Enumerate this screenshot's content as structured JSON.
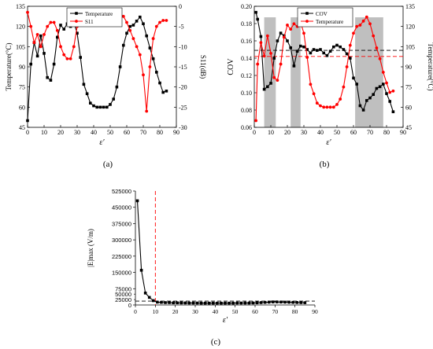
{
  "figure": {
    "panel_labels": [
      "(a)",
      "(b)",
      "(c)"
    ]
  },
  "chart_data": [
    {
      "panel": "(a)",
      "type": "line",
      "x_ticks": [
        "0",
        "10",
        "20",
        "30",
        "40",
        "50",
        "60",
        "70",
        "80",
        "90"
      ],
      "xlabel": "ε′",
      "xlim": [
        0,
        90
      ],
      "ylabel_left": "Temperature(°C)",
      "ylim_left": [
        45,
        135
      ],
      "y_ticks_left": [
        "45",
        "60",
        "75",
        "90",
        "105",
        "120",
        "135"
      ],
      "ylabel_right": "S11(dB)",
      "ylim_right": [
        -30,
        0
      ],
      "y_ticks_right": [
        "-30",
        "-25",
        "-20",
        "-15",
        "-10",
        "-5",
        "0"
      ],
      "legend": {
        "position": "top-left",
        "entries": [
          "Temperature",
          "S11"
        ]
      },
      "series": [
        {
          "name": "Temperature",
          "axis": "left",
          "color": "#000000",
          "marker": "square",
          "x": [
            0,
            2,
            4,
            6,
            8,
            10,
            12,
            14,
            16,
            18,
            20,
            22,
            24,
            26,
            28,
            30,
            32,
            34,
            36,
            38,
            40,
            42,
            44,
            46,
            48,
            50,
            52,
            54,
            56,
            58,
            60,
            62,
            64,
            66,
            68,
            70,
            72,
            74,
            76,
            78,
            80,
            82,
            84
          ],
          "y": [
            50,
            92,
            108,
            98,
            113,
            100,
            82,
            80,
            92,
            112,
            121,
            118,
            122,
            120,
            123,
            115,
            97,
            77,
            70,
            63,
            61,
            60,
            60,
            60,
            60,
            62,
            66,
            75,
            90,
            106,
            115,
            120,
            121,
            124,
            127,
            122,
            113,
            104,
            96,
            86,
            78,
            71,
            72
          ]
        },
        {
          "name": "S11",
          "axis": "right",
          "color": "#ff0000",
          "marker": "circle",
          "x": [
            0,
            2,
            4,
            6,
            8,
            10,
            12,
            14,
            16,
            18,
            20,
            22,
            24,
            26,
            28,
            30,
            32,
            34,
            36,
            38,
            40,
            42,
            44,
            46,
            48,
            50,
            52,
            54,
            56,
            58,
            60,
            62,
            64,
            66,
            68,
            70,
            72,
            74,
            76,
            78,
            80,
            82,
            84
          ],
          "y": [
            -1.5,
            -5,
            -9,
            -7,
            -10,
            -7,
            -5,
            -4,
            -4,
            -6,
            -10,
            -12,
            -13,
            -13,
            -10,
            -5,
            -3,
            -2,
            -2,
            -2,
            -2,
            -2,
            -2,
            -2,
            -2,
            -2,
            -2,
            -2,
            -2,
            -2.5,
            -4,
            -6,
            -8,
            -10,
            -12,
            -17,
            -26,
            -15,
            -8,
            -5,
            -4,
            -3.5,
            -3.5
          ]
        }
      ]
    },
    {
      "panel": "(b)",
      "type": "line",
      "x_ticks": [
        "0",
        "10",
        "20",
        "30",
        "40",
        "50",
        "60",
        "70",
        "80",
        "90"
      ],
      "xlabel": "ε′",
      "xlim": [
        0,
        90
      ],
      "ylabel_left": "COV",
      "ylim_left": [
        0.06,
        0.2
      ],
      "y_ticks_left": [
        "0.06",
        "0.08",
        "0.10",
        "0.12",
        "0.14",
        "0.16",
        "0.18",
        "0.20"
      ],
      "ylabel_right": "Temperature(°C)",
      "ylim_right": [
        45,
        135
      ],
      "y_ticks_right": [
        "45",
        "60",
        "75",
        "90",
        "105",
        "120",
        "135"
      ],
      "legend": {
        "position": "top-left",
        "entries": [
          "COV",
          "Temperature"
        ]
      },
      "shaded_x_ranges": [
        [
          6,
          13
        ],
        [
          22,
          28
        ],
        [
          61,
          78
        ]
      ],
      "reference_lines": [
        {
          "y": 0.149,
          "axis": "left",
          "color": "#000000",
          "style": "dashed"
        },
        {
          "y": 0.142,
          "axis": "left",
          "color": "#ff0000",
          "style": "dashed"
        }
      ],
      "series": [
        {
          "name": "COV",
          "axis": "left",
          "color": "#000000",
          "marker": "square",
          "x": [
            1,
            2,
            4,
            6,
            8,
            10,
            12,
            14,
            16,
            18,
            20,
            22,
            24,
            26,
            28,
            30,
            32,
            34,
            36,
            38,
            40,
            42,
            44,
            46,
            48,
            50,
            52,
            54,
            56,
            58,
            60,
            62,
            64,
            66,
            68,
            70,
            72,
            74,
            76,
            78,
            80,
            82,
            84
          ],
          "y": [
            0.193,
            0.185,
            0.165,
            0.104,
            0.107,
            0.111,
            0.14,
            0.16,
            0.169,
            0.166,
            0.16,
            0.152,
            0.131,
            0.148,
            0.154,
            0.153,
            0.15,
            0.146,
            0.15,
            0.149,
            0.15,
            0.146,
            0.143,
            0.148,
            0.153,
            0.155,
            0.153,
            0.15,
            0.145,
            0.14,
            0.117,
            0.11,
            0.085,
            0.08,
            0.091,
            0.094,
            0.098,
            0.105,
            0.107,
            0.11,
            0.099,
            0.09,
            0.078
          ]
        },
        {
          "name": "Temperature",
          "axis": "right",
          "color": "#ff0000",
          "marker": "circle",
          "x": [
            1,
            2,
            4,
            6,
            8,
            10,
            12,
            14,
            16,
            18,
            20,
            22,
            24,
            26,
            28,
            30,
            32,
            34,
            36,
            38,
            40,
            42,
            44,
            46,
            48,
            50,
            52,
            54,
            56,
            58,
            60,
            62,
            64,
            66,
            68,
            70,
            72,
            74,
            76,
            78,
            80,
            82,
            84
          ],
          "y": [
            50,
            92,
            108,
            98,
            113,
            100,
            82,
            80,
            92,
            112,
            121,
            118,
            122,
            120,
            123,
            115,
            97,
            77,
            70,
            63,
            61,
            60,
            60,
            60,
            60,
            62,
            66,
            75,
            90,
            106,
            115,
            120,
            121,
            124,
            127,
            122,
            113,
            104,
            96,
            86,
            78,
            71,
            72
          ]
        }
      ]
    },
    {
      "panel": "(c)",
      "type": "line",
      "x_ticks": [
        "0",
        "10",
        "20",
        "30",
        "40",
        "50",
        "60",
        "70",
        "80",
        "90"
      ],
      "xlabel": "ε′",
      "xlim": [
        0,
        90
      ],
      "ylabel": "|E|max (V/m)",
      "ylim": [
        0,
        525000
      ],
      "y_ticks": [
        "0",
        "75000",
        "150000",
        "225000",
        "300000",
        "375000",
        "450000",
        "525000"
      ],
      "y_minor_ticks": [
        "25000",
        "50000"
      ],
      "reference_lines": [
        {
          "y": 18000,
          "axis": "y",
          "color": "#000000",
          "style": "dashed"
        },
        {
          "x": 10,
          "axis": "x",
          "color": "#ff0000",
          "style": "dashed"
        }
      ],
      "series": [
        {
          "name": "",
          "color": "#000000",
          "marker": "square",
          "x": [
            1,
            3,
            5,
            7,
            9,
            11,
            13,
            15,
            17,
            19,
            21,
            23,
            25,
            27,
            29,
            31,
            33,
            35,
            37,
            39,
            41,
            43,
            45,
            47,
            49,
            51,
            53,
            55,
            57,
            59,
            61,
            63,
            65,
            67,
            69,
            71,
            73,
            75,
            77,
            79,
            81,
            83,
            85
          ],
          "y": [
            480000,
            160000,
            55000,
            35000,
            20000,
            13000,
            12000,
            11000,
            11000,
            10000,
            10000,
            9500,
            9500,
            9000,
            9000,
            9000,
            8500,
            8500,
            8500,
            8500,
            8500,
            8500,
            8500,
            8500,
            8500,
            9000,
            9000,
            9000,
            9000,
            9500,
            10000,
            11000,
            12000,
            13000,
            14000,
            14000,
            13500,
            13000,
            12500,
            12000,
            11500,
            11000,
            10500
          ]
        }
      ]
    }
  ]
}
